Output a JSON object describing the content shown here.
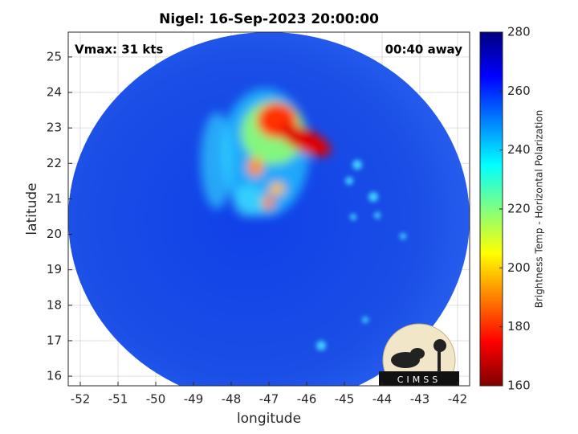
{
  "chart_data": {
    "type": "image",
    "title": "Nigel: 16-Sep-2023 20:00:00",
    "annotations": [
      "Vmax: 31 kts",
      "00:40 away"
    ],
    "xlabel": "longitude",
    "ylabel": "latitude",
    "xlim": [
      -52.32,
      -41.68
    ],
    "xticks": [
      -52,
      -51,
      -50,
      -49,
      -48,
      -47,
      -46,
      -45,
      -44,
      -43,
      -42
    ],
    "ylim": [
      15.73,
      25.7
    ],
    "yticks": [
      16,
      17,
      18,
      19,
      20,
      21,
      22,
      23,
      24,
      25
    ],
    "grid": true,
    "colorbar": {
      "label": "Brightness Temp - Horizontal Polarization",
      "lim": [
        160,
        280
      ],
      "ticks": [
        160,
        180,
        200,
        220,
        240,
        260,
        280
      ],
      "colors": [
        "#800000",
        "#ff0000",
        "#ff8000",
        "#ffff00",
        "#80ff80",
        "#00ffff",
        "#0080ff",
        "#0000ff",
        "#000080"
      ]
    },
    "logo": "CIMSS"
  }
}
